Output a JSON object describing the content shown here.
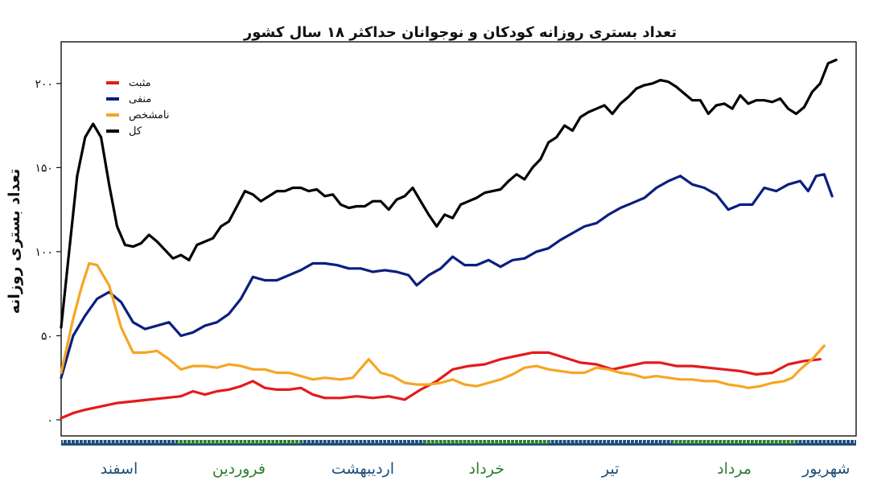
{
  "chart_data": {
    "type": "line",
    "title": "تعداد بستری روزانه کودکان و نوجوانان حداکثر ۱۸ سال کشور",
    "ylabel": "تعداد بستری روزانه",
    "ylim": [
      0,
      220
    ],
    "yticks": [
      0,
      50,
      100,
      150,
      200
    ],
    "ytick_labels": [
      "۰",
      "۵۰",
      "۱۰۰",
      "۱۵۰",
      "۲۰۰"
    ],
    "grid": false,
    "legend_position": "top-left",
    "x_months": [
      {
        "label": "اسفند",
        "start": 0,
        "end": 29,
        "color": "#1f4e79"
      },
      {
        "label": "فروردین",
        "start": 29,
        "end": 60,
        "color": "#2e7d32"
      },
      {
        "label": "اردیبهشت",
        "start": 60,
        "end": 91,
        "color": "#1f4e79"
      },
      {
        "label": "خرداد",
        "start": 91,
        "end": 122,
        "color": "#2e7d32"
      },
      {
        "label": "تیر",
        "start": 122,
        "end": 153,
        "color": "#1f4e79"
      },
      {
        "label": "مرداد",
        "start": 153,
        "end": 184,
        "color": "#2e7d32"
      },
      {
        "label": "شهریور",
        "start": 184,
        "end": 199,
        "color": "#1f4e79"
      }
    ],
    "series": [
      {
        "name": "مثبت",
        "color": "#e41a1c",
        "points": [
          [
            0,
            1
          ],
          [
            3,
            4
          ],
          [
            6,
            6
          ],
          [
            10,
            8
          ],
          [
            14,
            10
          ],
          [
            18,
            11
          ],
          [
            22,
            12
          ],
          [
            26,
            13
          ],
          [
            30,
            14
          ],
          [
            33,
            17
          ],
          [
            36,
            15
          ],
          [
            39,
            17
          ],
          [
            42,
            18
          ],
          [
            45,
            20
          ],
          [
            48,
            23
          ],
          [
            51,
            19
          ],
          [
            54,
            18
          ],
          [
            57,
            18
          ],
          [
            60,
            19
          ],
          [
            63,
            15
          ],
          [
            66,
            13
          ],
          [
            70,
            13
          ],
          [
            74,
            14
          ],
          [
            78,
            13
          ],
          [
            82,
            14
          ],
          [
            86,
            12
          ],
          [
            90,
            18
          ],
          [
            94,
            23
          ],
          [
            98,
            30
          ],
          [
            102,
            32
          ],
          [
            106,
            33
          ],
          [
            110,
            36
          ],
          [
            114,
            38
          ],
          [
            118,
            40
          ],
          [
            122,
            40
          ],
          [
            126,
            37
          ],
          [
            130,
            34
          ],
          [
            134,
            33
          ],
          [
            138,
            30
          ],
          [
            142,
            32
          ],
          [
            146,
            34
          ],
          [
            150,
            34
          ],
          [
            154,
            32
          ],
          [
            158,
            32
          ],
          [
            162,
            31
          ],
          [
            166,
            30
          ],
          [
            170,
            29
          ],
          [
            174,
            27
          ],
          [
            178,
            28
          ],
          [
            182,
            33
          ],
          [
            186,
            35
          ],
          [
            190,
            36
          ]
        ]
      },
      {
        "name": "منفی",
        "color": "#0b1f7f",
        "points": [
          [
            0,
            25
          ],
          [
            3,
            50
          ],
          [
            6,
            62
          ],
          [
            9,
            72
          ],
          [
            12,
            76
          ],
          [
            15,
            70
          ],
          [
            18,
            58
          ],
          [
            21,
            54
          ],
          [
            24,
            56
          ],
          [
            27,
            58
          ],
          [
            30,
            50
          ],
          [
            33,
            52
          ],
          [
            36,
            56
          ],
          [
            39,
            58
          ],
          [
            42,
            63
          ],
          [
            45,
            72
          ],
          [
            48,
            85
          ],
          [
            51,
            83
          ],
          [
            54,
            83
          ],
          [
            57,
            86
          ],
          [
            60,
            89
          ],
          [
            63,
            93
          ],
          [
            66,
            93
          ],
          [
            69,
            92
          ],
          [
            72,
            90
          ],
          [
            75,
            90
          ],
          [
            78,
            88
          ],
          [
            81,
            89
          ],
          [
            84,
            88
          ],
          [
            87,
            86
          ],
          [
            89,
            80
          ],
          [
            92,
            86
          ],
          [
            95,
            90
          ],
          [
            98,
            97
          ],
          [
            101,
            92
          ],
          [
            104,
            92
          ],
          [
            107,
            95
          ],
          [
            110,
            91
          ],
          [
            113,
            95
          ],
          [
            116,
            96
          ],
          [
            119,
            100
          ],
          [
            122,
            102
          ],
          [
            125,
            107
          ],
          [
            128,
            111
          ],
          [
            131,
            115
          ],
          [
            134,
            117
          ],
          [
            137,
            122
          ],
          [
            140,
            126
          ],
          [
            143,
            129
          ],
          [
            146,
            132
          ],
          [
            149,
            138
          ],
          [
            152,
            142
          ],
          [
            155,
            145
          ],
          [
            158,
            140
          ],
          [
            161,
            138
          ],
          [
            164,
            134
          ],
          [
            167,
            125
          ],
          [
            170,
            128
          ],
          [
            173,
            128
          ],
          [
            176,
            138
          ],
          [
            179,
            136
          ],
          [
            182,
            140
          ],
          [
            185,
            142
          ],
          [
            187,
            136
          ],
          [
            189,
            145
          ],
          [
            191,
            146
          ],
          [
            193,
            133
          ]
        ]
      },
      {
        "name": "نامشخص",
        "color": "#f5a623",
        "points": [
          [
            0,
            28
          ],
          [
            3,
            60
          ],
          [
            5,
            78
          ],
          [
            7,
            93
          ],
          [
            9,
            92
          ],
          [
            12,
            80
          ],
          [
            15,
            55
          ],
          [
            18,
            40
          ],
          [
            21,
            40
          ],
          [
            24,
            41
          ],
          [
            27,
            36
          ],
          [
            30,
            30
          ],
          [
            33,
            32
          ],
          [
            36,
            32
          ],
          [
            39,
            31
          ],
          [
            42,
            33
          ],
          [
            45,
            32
          ],
          [
            48,
            30
          ],
          [
            51,
            30
          ],
          [
            54,
            28
          ],
          [
            57,
            28
          ],
          [
            60,
            26
          ],
          [
            63,
            24
          ],
          [
            66,
            25
          ],
          [
            70,
            24
          ],
          [
            73,
            25
          ],
          [
            77,
            36
          ],
          [
            80,
            28
          ],
          [
            83,
            26
          ],
          [
            86,
            22
          ],
          [
            89,
            21
          ],
          [
            92,
            21
          ],
          [
            95,
            22
          ],
          [
            98,
            24
          ],
          [
            101,
            21
          ],
          [
            104,
            20
          ],
          [
            107,
            22
          ],
          [
            110,
            24
          ],
          [
            113,
            27
          ],
          [
            116,
            31
          ],
          [
            119,
            32
          ],
          [
            122,
            30
          ],
          [
            125,
            29
          ],
          [
            128,
            28
          ],
          [
            131,
            28
          ],
          [
            134,
            31
          ],
          [
            137,
            30
          ],
          [
            140,
            28
          ],
          [
            143,
            27
          ],
          [
            146,
            25
          ],
          [
            149,
            26
          ],
          [
            152,
            25
          ],
          [
            155,
            24
          ],
          [
            158,
            24
          ],
          [
            161,
            23
          ],
          [
            164,
            23
          ],
          [
            167,
            21
          ],
          [
            170,
            20
          ],
          [
            172,
            19
          ],
          [
            175,
            20
          ],
          [
            178,
            22
          ],
          [
            181,
            23
          ],
          [
            183,
            25
          ],
          [
            185,
            30
          ],
          [
            188,
            36
          ],
          [
            191,
            44
          ]
        ]
      },
      {
        "name": "کل",
        "color": "#000000",
        "points": [
          [
            0,
            55
          ],
          [
            2,
            100
          ],
          [
            4,
            145
          ],
          [
            6,
            168
          ],
          [
            8,
            176
          ],
          [
            10,
            168
          ],
          [
            12,
            140
          ],
          [
            14,
            115
          ],
          [
            16,
            104
          ],
          [
            18,
            103
          ],
          [
            20,
            105
          ],
          [
            22,
            110
          ],
          [
            24,
            106
          ],
          [
            26,
            101
          ],
          [
            28,
            96
          ],
          [
            30,
            98
          ],
          [
            32,
            95
          ],
          [
            34,
            104
          ],
          [
            36,
            106
          ],
          [
            38,
            108
          ],
          [
            40,
            115
          ],
          [
            42,
            118
          ],
          [
            44,
            127
          ],
          [
            46,
            136
          ],
          [
            48,
            134
          ],
          [
            50,
            130
          ],
          [
            52,
            133
          ],
          [
            54,
            136
          ],
          [
            56,
            136
          ],
          [
            58,
            138
          ],
          [
            60,
            138
          ],
          [
            62,
            136
          ],
          [
            64,
            137
          ],
          [
            66,
            133
          ],
          [
            68,
            134
          ],
          [
            70,
            128
          ],
          [
            72,
            126
          ],
          [
            74,
            127
          ],
          [
            76,
            127
          ],
          [
            78,
            130
          ],
          [
            80,
            130
          ],
          [
            82,
            125
          ],
          [
            84,
            131
          ],
          [
            86,
            133
          ],
          [
            88,
            138
          ],
          [
            90,
            130
          ],
          [
            92,
            122
          ],
          [
            94,
            115
          ],
          [
            96,
            122
          ],
          [
            98,
            120
          ],
          [
            100,
            128
          ],
          [
            102,
            130
          ],
          [
            104,
            132
          ],
          [
            106,
            135
          ],
          [
            108,
            136
          ],
          [
            110,
            137
          ],
          [
            112,
            142
          ],
          [
            114,
            146
          ],
          [
            116,
            143
          ],
          [
            118,
            150
          ],
          [
            120,
            155
          ],
          [
            122,
            165
          ],
          [
            124,
            168
          ],
          [
            126,
            175
          ],
          [
            128,
            172
          ],
          [
            130,
            180
          ],
          [
            132,
            183
          ],
          [
            134,
            185
          ],
          [
            136,
            187
          ],
          [
            138,
            182
          ],
          [
            140,
            188
          ],
          [
            142,
            192
          ],
          [
            144,
            197
          ],
          [
            146,
            199
          ],
          [
            148,
            200
          ],
          [
            150,
            202
          ],
          [
            152,
            201
          ],
          [
            154,
            198
          ],
          [
            156,
            194
          ],
          [
            158,
            190
          ],
          [
            160,
            190
          ],
          [
            162,
            182
          ],
          [
            164,
            187
          ],
          [
            166,
            188
          ],
          [
            168,
            185
          ],
          [
            170,
            193
          ],
          [
            172,
            188
          ],
          [
            174,
            190
          ],
          [
            176,
            190
          ],
          [
            178,
            189
          ],
          [
            180,
            191
          ],
          [
            182,
            185
          ],
          [
            184,
            182
          ],
          [
            186,
            186
          ],
          [
            188,
            195
          ],
          [
            190,
            200
          ],
          [
            192,
            212
          ],
          [
            194,
            214
          ]
        ]
      }
    ]
  }
}
